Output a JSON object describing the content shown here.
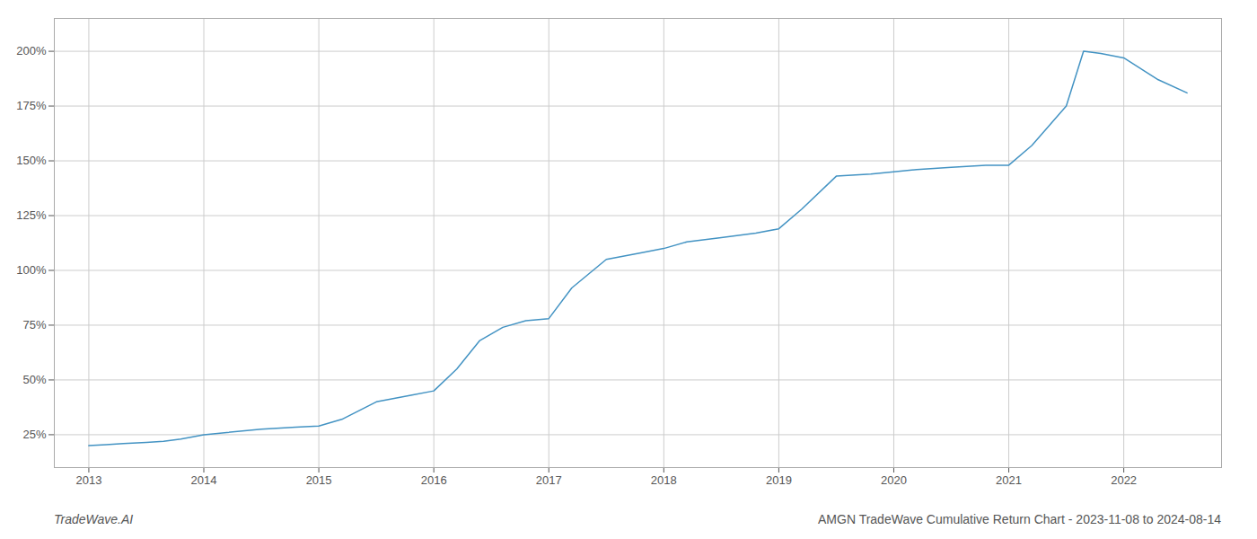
{
  "chart_data": {
    "type": "line",
    "title": "AMGN TradeWave Cumulative Return Chart - 2023-11-08 to 2024-08-14",
    "annotations": [
      "TradeWave.AI"
    ],
    "color": "#4393c3",
    "grid": true,
    "x": [
      2013.0,
      2013.15,
      2013.3,
      2013.5,
      2013.65,
      2013.8,
      2014.0,
      2014.2,
      2014.5,
      2014.8,
      2015.0,
      2015.2,
      2015.5,
      2015.8,
      2016.0,
      2016.2,
      2016.4,
      2016.6,
      2016.8,
      2017.0,
      2017.2,
      2017.5,
      2017.8,
      2018.0,
      2018.2,
      2018.5,
      2018.8,
      2019.0,
      2019.2,
      2019.5,
      2019.8,
      2020.0,
      2020.2,
      2020.5,
      2020.8,
      2021.0,
      2021.2,
      2021.5,
      2021.65,
      2021.8,
      2022.0,
      2022.3,
      2022.55
    ],
    "values": [
      20,
      20.5,
      21,
      21.5,
      22,
      23,
      25,
      26,
      27.5,
      28.5,
      29,
      32,
      40,
      43,
      45,
      55,
      68,
      74,
      77,
      78,
      92,
      105,
      108,
      110,
      113,
      115,
      117,
      119,
      128,
      143,
      144,
      145,
      146,
      147,
      148,
      148,
      157,
      175,
      200,
      199,
      197,
      187,
      181
    ],
    "xlim": [
      2012.7,
      2022.85
    ],
    "xticks": [
      2013,
      2014,
      2015,
      2016,
      2017,
      2018,
      2019,
      2020,
      2021,
      2022
    ],
    "ylim": [
      10,
      215
    ],
    "yticks": [
      {
        "value": 25,
        "label": "25%"
      },
      {
        "value": 50,
        "label": "50%"
      },
      {
        "value": 75,
        "label": "75%"
      },
      {
        "value": 100,
        "label": "100%"
      },
      {
        "value": 125,
        "label": "125%"
      },
      {
        "value": 150,
        "label": "150%"
      },
      {
        "value": 175,
        "label": "175%"
      },
      {
        "value": 200,
        "label": "200%"
      }
    ]
  }
}
